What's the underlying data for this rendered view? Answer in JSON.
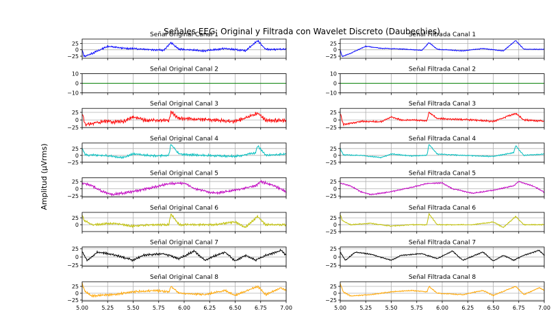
{
  "figure": {
    "suptitle": "Señales EEG: Original y Filtrada con Wavelet Discreto (Daubechies)",
    "ylabel": "Amplitud (µVrms)"
  },
  "chart_data": [
    {
      "type": "line",
      "title": "Señal Original Canal 1",
      "xlim": [
        5.0,
        7.0
      ],
      "ylim": [
        -33,
        42
      ],
      "yticks": [
        -25,
        0,
        25
      ],
      "color": "#0000ff",
      "noise": 0.25,
      "baseline": [
        [
          5.0,
          -2
        ],
        [
          5.02,
          -26
        ],
        [
          5.1,
          -14
        ],
        [
          5.25,
          14
        ],
        [
          5.4,
          6
        ],
        [
          5.6,
          3
        ],
        [
          5.8,
          -2
        ],
        [
          5.87,
          28
        ],
        [
          5.95,
          2
        ],
        [
          6.2,
          -4
        ],
        [
          6.4,
          5
        ],
        [
          6.6,
          -4
        ],
        [
          6.72,
          36
        ],
        [
          6.8,
          2
        ],
        [
          7.0,
          2
        ]
      ],
      "series": [
        {
          "x": [
            5.0,
            7.0
          ],
          "values": [
            -2,
            2
          ]
        }
      ]
    },
    {
      "type": "line",
      "title": "Señal Filtrada Canal 1",
      "xlim": [
        5.0,
        7.0
      ],
      "ylim": [
        -33,
        42
      ],
      "yticks": [
        -25,
        0,
        25
      ],
      "color": "#0000ff",
      "noise": 0.12,
      "baseline": [
        [
          5.0,
          -2
        ],
        [
          5.02,
          -26
        ],
        [
          5.1,
          -14
        ],
        [
          5.25,
          14
        ],
        [
          5.4,
          6
        ],
        [
          5.6,
          3
        ],
        [
          5.8,
          -2
        ],
        [
          5.87,
          28
        ],
        [
          5.95,
          2
        ],
        [
          6.2,
          -4
        ],
        [
          6.4,
          5
        ],
        [
          6.6,
          -4
        ],
        [
          6.72,
          36
        ],
        [
          6.8,
          2
        ],
        [
          7.0,
          2
        ]
      ],
      "series": [
        {
          "x": [
            5.0,
            7.0
          ],
          "values": [
            -2,
            2
          ]
        }
      ]
    },
    {
      "type": "line",
      "title": "Señal Original Canal 2",
      "xlim": [
        5.0,
        7.0
      ],
      "ylim": [
        -10,
        10
      ],
      "yticks": [
        -10,
        0,
        10
      ],
      "color": "#008000",
      "noise": 0,
      "baseline": [
        [
          5.0,
          0
        ],
        [
          7.0,
          0
        ]
      ],
      "series": [
        {
          "x": [
            5.0,
            7.0
          ],
          "values": [
            0,
            0
          ]
        }
      ]
    },
    {
      "type": "line",
      "title": "Señal Filtrada Canal 2",
      "xlim": [
        5.0,
        7.0
      ],
      "ylim": [
        -10,
        10
      ],
      "yticks": [
        -10,
        0,
        10
      ],
      "color": "#008000",
      "noise": 0,
      "baseline": [
        [
          5.0,
          0
        ],
        [
          7.0,
          0
        ]
      ],
      "series": [
        {
          "x": [
            5.0,
            7.0
          ],
          "values": [
            0,
            0
          ]
        }
      ]
    },
    {
      "type": "line",
      "title": "Señal Original Canal 3",
      "xlim": [
        5.0,
        7.0
      ],
      "ylim": [
        -25,
        38
      ],
      "yticks": [
        -25,
        0,
        25
      ],
      "color": "#ff0000",
      "noise": 0.5,
      "baseline": [
        [
          5.0,
          22
        ],
        [
          5.03,
          -15
        ],
        [
          5.2,
          -5
        ],
        [
          5.4,
          -6
        ],
        [
          5.5,
          10
        ],
        [
          5.6,
          0
        ],
        [
          5.85,
          -2
        ],
        [
          5.87,
          26
        ],
        [
          5.95,
          5
        ],
        [
          6.3,
          0
        ],
        [
          6.5,
          -5
        ],
        [
          6.72,
          22
        ],
        [
          6.8,
          0
        ],
        [
          7.0,
          -4
        ]
      ],
      "series": [
        {
          "x": [
            5.0,
            7.0
          ],
          "values": [
            22,
            -4
          ]
        }
      ]
    },
    {
      "type": "line",
      "title": "Señal Filtrada Canal 3",
      "xlim": [
        5.0,
        7.0
      ],
      "ylim": [
        -25,
        38
      ],
      "yticks": [
        -25,
        0,
        25
      ],
      "color": "#ff0000",
      "noise": 0.25,
      "baseline": [
        [
          5.0,
          22
        ],
        [
          5.03,
          -15
        ],
        [
          5.2,
          -5
        ],
        [
          5.4,
          -6
        ],
        [
          5.5,
          10
        ],
        [
          5.6,
          0
        ],
        [
          5.85,
          -2
        ],
        [
          5.87,
          26
        ],
        [
          5.95,
          5
        ],
        [
          6.3,
          0
        ],
        [
          6.5,
          -5
        ],
        [
          6.72,
          22
        ],
        [
          6.8,
          0
        ],
        [
          7.0,
          -4
        ]
      ],
      "series": [
        {
          "x": [
            5.0,
            7.0
          ],
          "values": [
            22,
            -4
          ]
        }
      ]
    },
    {
      "type": "line",
      "title": "Señal Original Canal 4",
      "xlim": [
        5.0,
        7.0
      ],
      "ylim": [
        -25,
        45
      ],
      "yticks": [
        -25,
        0,
        25
      ],
      "color": "#00bfbf",
      "noise": 0.3,
      "baseline": [
        [
          5.0,
          25
        ],
        [
          5.03,
          2
        ],
        [
          5.2,
          0
        ],
        [
          5.4,
          -8
        ],
        [
          5.5,
          5
        ],
        [
          5.7,
          -2
        ],
        [
          5.85,
          0
        ],
        [
          5.87,
          40
        ],
        [
          5.95,
          5
        ],
        [
          6.2,
          0
        ],
        [
          6.5,
          -4
        ],
        [
          6.7,
          10
        ],
        [
          6.72,
          35
        ],
        [
          6.8,
          0
        ],
        [
          7.0,
          5
        ]
      ],
      "series": [
        {
          "x": [
            5.0,
            7.0
          ],
          "values": [
            25,
            5
          ]
        }
      ]
    },
    {
      "type": "line",
      "title": "Señal Filtrada Canal 4",
      "xlim": [
        5.0,
        7.0
      ],
      "ylim": [
        -25,
        45
      ],
      "yticks": [
        -25,
        0,
        25
      ],
      "color": "#00bfbf",
      "noise": 0.15,
      "baseline": [
        [
          5.0,
          25
        ],
        [
          5.03,
          2
        ],
        [
          5.2,
          0
        ],
        [
          5.4,
          -8
        ],
        [
          5.5,
          5
        ],
        [
          5.7,
          -2
        ],
        [
          5.85,
          0
        ],
        [
          5.87,
          40
        ],
        [
          5.95,
          5
        ],
        [
          6.2,
          0
        ],
        [
          6.5,
          -4
        ],
        [
          6.7,
          10
        ],
        [
          6.72,
          35
        ],
        [
          6.8,
          0
        ],
        [
          7.0,
          5
        ]
      ],
      "series": [
        {
          "x": [
            5.0,
            7.0
          ],
          "values": [
            25,
            5
          ]
        }
      ]
    },
    {
      "type": "line",
      "title": "Señal Original Canal 5",
      "xlim": [
        5.0,
        7.0
      ],
      "ylim": [
        -28,
        38
      ],
      "yticks": [
        -25,
        0,
        25
      ],
      "color": "#bf00bf",
      "noise": 0.35,
      "baseline": [
        [
          5.0,
          20
        ],
        [
          5.1,
          10
        ],
        [
          5.2,
          -10
        ],
        [
          5.3,
          -20
        ],
        [
          5.5,
          -10
        ],
        [
          5.7,
          5
        ],
        [
          5.85,
          18
        ],
        [
          6.0,
          20
        ],
        [
          6.1,
          0
        ],
        [
          6.3,
          -15
        ],
        [
          6.5,
          -5
        ],
        [
          6.7,
          10
        ],
        [
          6.75,
          25
        ],
        [
          6.9,
          8
        ],
        [
          7.0,
          -12
        ]
      ],
      "series": [
        {
          "x": [
            5.0,
            7.0
          ],
          "values": [
            20,
            -12
          ]
        }
      ]
    },
    {
      "type": "line",
      "title": "Señal Filtrada Canal 5",
      "xlim": [
        5.0,
        7.0
      ],
      "ylim": [
        -28,
        38
      ],
      "yticks": [
        -25,
        0,
        25
      ],
      "color": "#bf00bf",
      "noise": 0.17,
      "baseline": [
        [
          5.0,
          20
        ],
        [
          5.1,
          10
        ],
        [
          5.2,
          -10
        ],
        [
          5.3,
          -20
        ],
        [
          5.5,
          -10
        ],
        [
          5.7,
          5
        ],
        [
          5.85,
          18
        ],
        [
          6.0,
          20
        ],
        [
          6.1,
          0
        ],
        [
          6.3,
          -15
        ],
        [
          6.5,
          -5
        ],
        [
          6.7,
          10
        ],
        [
          6.75,
          25
        ],
        [
          6.9,
          8
        ],
        [
          7.0,
          -12
        ]
      ],
      "series": [
        {
          "x": [
            5.0,
            7.0
          ],
          "values": [
            20,
            -12
          ]
        }
      ]
    },
    {
      "type": "line",
      "title": "Señal Original Canal 6",
      "xlim": [
        5.0,
        7.0
      ],
      "ylim": [
        -25,
        45
      ],
      "yticks": [
        0,
        25
      ],
      "color": "#bfbf00",
      "noise": 0.3,
      "baseline": [
        [
          5.0,
          38
        ],
        [
          5.02,
          15
        ],
        [
          5.1,
          0
        ],
        [
          5.3,
          5
        ],
        [
          5.5,
          -5
        ],
        [
          5.7,
          0
        ],
        [
          5.85,
          0
        ],
        [
          5.87,
          40
        ],
        [
          5.95,
          0
        ],
        [
          6.3,
          0
        ],
        [
          6.5,
          10
        ],
        [
          6.6,
          -10
        ],
        [
          6.72,
          30
        ],
        [
          6.8,
          0
        ],
        [
          7.0,
          0
        ]
      ],
      "series": [
        {
          "x": [
            5.0,
            7.0
          ],
          "values": [
            38,
            0
          ]
        }
      ]
    },
    {
      "type": "line",
      "title": "Señal Filtrada Canal 6",
      "xlim": [
        5.0,
        7.0
      ],
      "ylim": [
        -25,
        45
      ],
      "yticks": [
        -25,
        0,
        25
      ],
      "color": "#bfbf00",
      "noise": 0.15,
      "baseline": [
        [
          5.0,
          38
        ],
        [
          5.02,
          15
        ],
        [
          5.1,
          0
        ],
        [
          5.3,
          5
        ],
        [
          5.5,
          -5
        ],
        [
          5.7,
          0
        ],
        [
          5.85,
          0
        ],
        [
          5.87,
          40
        ],
        [
          5.95,
          0
        ],
        [
          6.3,
          0
        ],
        [
          6.5,
          10
        ],
        [
          6.6,
          -10
        ],
        [
          6.72,
          30
        ],
        [
          6.8,
          0
        ],
        [
          7.0,
          0
        ]
      ],
      "series": [
        {
          "x": [
            5.0,
            7.0
          ],
          "values": [
            38,
            0
          ]
        }
      ]
    },
    {
      "type": "line",
      "title": "Señal Original Canal 7",
      "xlim": [
        5.0,
        7.0
      ],
      "ylim": [
        -28,
        30
      ],
      "yticks": [
        -25,
        0,
        25
      ],
      "color": "#000000",
      "noise": 0.3,
      "baseline": [
        [
          5.0,
          15
        ],
        [
          5.05,
          -10
        ],
        [
          5.15,
          15
        ],
        [
          5.3,
          8
        ],
        [
          5.5,
          -10
        ],
        [
          5.6,
          5
        ],
        [
          5.8,
          10
        ],
        [
          5.95,
          -5
        ],
        [
          6.1,
          18
        ],
        [
          6.2,
          -10
        ],
        [
          6.4,
          15
        ],
        [
          6.5,
          -12
        ],
        [
          6.6,
          5
        ],
        [
          6.7,
          -10
        ],
        [
          6.8,
          5
        ],
        [
          6.95,
          20
        ],
        [
          7.0,
          5
        ]
      ],
      "series": [
        {
          "x": [
            5.0,
            7.0
          ],
          "values": [
            15,
            5
          ]
        }
      ]
    },
    {
      "type": "line",
      "title": "Señal Filtrada Canal 7",
      "xlim": [
        5.0,
        7.0
      ],
      "ylim": [
        -28,
        30
      ],
      "yticks": [
        -25,
        0,
        25
      ],
      "color": "#000000",
      "noise": 0.15,
      "baseline": [
        [
          5.0,
          15
        ],
        [
          5.05,
          -10
        ],
        [
          5.15,
          15
        ],
        [
          5.3,
          8
        ],
        [
          5.5,
          -10
        ],
        [
          5.6,
          5
        ],
        [
          5.8,
          10
        ],
        [
          5.95,
          -5
        ],
        [
          6.1,
          18
        ],
        [
          6.2,
          -10
        ],
        [
          6.4,
          15
        ],
        [
          6.5,
          -12
        ],
        [
          6.6,
          5
        ],
        [
          6.7,
          -10
        ],
        [
          6.8,
          5
        ],
        [
          6.95,
          20
        ],
        [
          7.0,
          5
        ]
      ],
      "series": [
        {
          "x": [
            5.0,
            7.0
          ],
          "values": [
            15,
            5
          ]
        }
      ]
    },
    {
      "type": "line",
      "title": "Señal Original Canal 8",
      "xlim": [
        5.0,
        7.0
      ],
      "ylim": [
        -28,
        42
      ],
      "yticks": [
        -25,
        0,
        25
      ],
      "color": "#ffa500",
      "noise": 0.3,
      "baseline": [
        [
          5.0,
          35
        ],
        [
          5.03,
          5
        ],
        [
          5.1,
          -10
        ],
        [
          5.3,
          -5
        ],
        [
          5.5,
          5
        ],
        [
          5.7,
          10
        ],
        [
          5.85,
          5
        ],
        [
          5.87,
          25
        ],
        [
          5.95,
          0
        ],
        [
          6.2,
          -5
        ],
        [
          6.4,
          10
        ],
        [
          6.5,
          -8
        ],
        [
          6.72,
          25
        ],
        [
          6.8,
          -5
        ],
        [
          6.95,
          20
        ],
        [
          7.0,
          10
        ]
      ],
      "series": [
        {
          "x": [
            5.0,
            7.0
          ],
          "values": [
            35,
            10
          ]
        }
      ]
    },
    {
      "type": "line",
      "title": "Señal Filtrada Canal 8",
      "xlim": [
        5.0,
        7.0
      ],
      "ylim": [
        -28,
        42
      ],
      "yticks": [
        -25,
        0,
        25
      ],
      "color": "#ffa500",
      "noise": 0.15,
      "baseline": [
        [
          5.0,
          35
        ],
        [
          5.03,
          5
        ],
        [
          5.1,
          -10
        ],
        [
          5.3,
          -5
        ],
        [
          5.5,
          5
        ],
        [
          5.7,
          10
        ],
        [
          5.85,
          5
        ],
        [
          5.87,
          25
        ],
        [
          5.95,
          0
        ],
        [
          6.2,
          -5
        ],
        [
          6.4,
          10
        ],
        [
          6.5,
          -8
        ],
        [
          6.72,
          25
        ],
        [
          6.8,
          -5
        ],
        [
          6.95,
          20
        ],
        [
          7.0,
          10
        ]
      ],
      "series": [
        {
          "x": [
            5.0,
            7.0
          ],
          "values": [
            35,
            10
          ]
        }
      ]
    }
  ],
  "xticks": [
    "5.00",
    "5.25",
    "5.50",
    "5.75",
    "6.00",
    "6.25",
    "6.50",
    "6.75",
    "7.00"
  ]
}
